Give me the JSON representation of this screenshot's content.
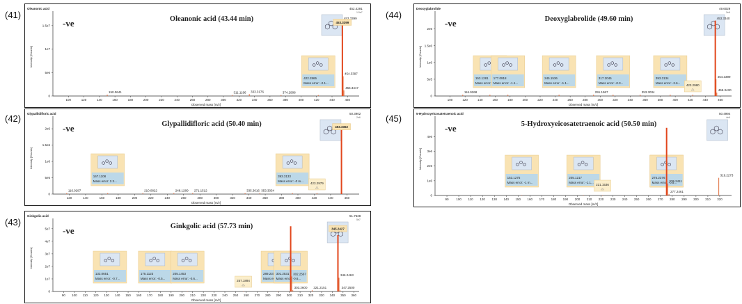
{
  "colors": {
    "peak": "#e06a3a",
    "main_peak": "#e2461c",
    "box_fill": "#f9e3b3",
    "box_fill_light": "#fbeecb",
    "annot_fill": "#bcd8e8",
    "struct_fill": "#dbe6f3",
    "axis": "#333333",
    "text": "#222222"
  },
  "chart_data": [
    {
      "panel": "(41)",
      "type": "bar",
      "window_title": "Oleanonic acid",
      "title": "Oleanonic acid (43.44 min)",
      "mode": "-ve",
      "scale_label": "1.5e7",
      "xlabel": "Observed mass [m/z]",
      "ylabel": "Intensity [Counts]",
      "xlim": [
        80,
        475
      ],
      "ylim": [
        0,
        17500000.0
      ],
      "yticks": [
        {
          "v": 0,
          "l": "0"
        },
        {
          "v": 5000000.0,
          "l": "5e6"
        },
        {
          "v": 10000000.0,
          "l": "1e7"
        },
        {
          "v": 15000000.0,
          "l": "1.5e7"
        }
      ],
      "xticks": [
        100,
        120,
        140,
        160,
        180,
        200,
        220,
        240,
        260,
        280,
        300,
        320,
        340,
        360,
        380,
        400,
        420,
        440,
        460
      ],
      "peaks": [
        {
          "x": 150.0641,
          "y": 300000.0,
          "label": "150.0641"
        },
        {
          "x": 311.1196,
          "y": 200000.0,
          "label": "311.1196"
        },
        {
          "x": 333.3176,
          "y": 400000.0,
          "label": "333.3176"
        },
        {
          "x": 374.2908,
          "y": 200000.0,
          "label": "374.2908"
        },
        {
          "x": 422.2865,
          "y": 200000.0,
          "label": ""
        },
        {
          "x": 453.3399,
          "y": 16000000.0,
          "label": "453.3399",
          "main": true
        },
        {
          "x": 454.3397,
          "y": 4200000.0,
          "label": "454.3397"
        },
        {
          "x": 455.3417,
          "y": 1200000.0,
          "label": "455.3417"
        }
      ],
      "top_label": "452.4291",
      "annotations": [
        {
          "x": 422.2865,
          "mass": "422.2865",
          "error": "Mass error: -2.1..."
        }
      ],
      "main_box": {
        "x": 453.3399,
        "mass": "453.3399"
      },
      "structure_x": 440
    },
    {
      "panel": "(44)",
      "type": "bar",
      "window_title": "Deoxyglabrolide",
      "title": "Deoxyglabrolide (49.60 min)",
      "mode": "-ve",
      "scale_label": "2e6",
      "xlabel": "Observed mass [m/z]",
      "ylabel": "Intensity [Counts]",
      "xlim": [
        80,
        475
      ],
      "ylim": [
        0,
        2450000.0
      ],
      "yticks": [
        {
          "v": 0,
          "l": "0"
        },
        {
          "v": 500000.0,
          "l": "5e5"
        },
        {
          "v": 1000000.0,
          "l": "1e6"
        },
        {
          "v": 1500000.0,
          "l": "1.5e6"
        },
        {
          "v": 2000000.0,
          "l": "2e6"
        }
      ],
      "xticks": [
        100,
        120,
        140,
        160,
        180,
        200,
        220,
        240,
        260,
        280,
        300,
        320,
        340,
        360,
        380,
        400,
        420,
        440,
        460
      ],
      "peaks": [
        {
          "x": 116.9268,
          "y": 40000.0,
          "label": "116.9268"
        },
        {
          "x": 153.1281,
          "y": 40000.0,
          "label": ""
        },
        {
          "x": 177.0918,
          "y": 40000.0,
          "label": ""
        },
        {
          "x": 245.1536,
          "y": 40000.0,
          "label": ""
        },
        {
          "x": 291.1967,
          "y": 40000.0,
          "label": "291.1967"
        },
        {
          "x": 317.2045,
          "y": 40000.0,
          "label": ""
        },
        {
          "x": 353.3034,
          "y": 40000.0,
          "label": "353.3034"
        },
        {
          "x": 393.3134,
          "y": 40000.0,
          "label": ""
        },
        {
          "x": 423.298,
          "y": 40000.0,
          "label": ""
        },
        {
          "x": 453.334,
          "y": 2250000.0,
          "label": "453.3340",
          "main": true
        },
        {
          "x": 454.3399,
          "y": 500000.0,
          "label": "454.3399"
        },
        {
          "x": 455.343,
          "y": 100000.0,
          "label": "455.3430"
        }
      ],
      "top_label": "49.6029",
      "annotations": [
        {
          "x": 153.1281,
          "mass": "153.1281",
          "error": "Mass error: -0.4..."
        },
        {
          "x": 177.0918,
          "mass": "177.0918",
          "error": "Mass error: -1.1..."
        },
        {
          "x": 245.1536,
          "mass": "245.1536",
          "error": "Mass error: -1.1..."
        },
        {
          "x": 317.2045,
          "mass": "317.2045",
          "error": "Mass error: -0.3..."
        },
        {
          "x": 393.3134,
          "mass": "393.3134",
          "error": "Mass error: -2.6..."
        }
      ],
      "small_boxes": [
        {
          "x": 423.298,
          "mass": "423.2980"
        }
      ],
      "structure_x": 452
    },
    {
      "panel": "(42)",
      "type": "bar",
      "window_title": "Glypallidifloric acid",
      "title": "Glypallidifloric acid (50.40 min)",
      "mode": "-ve",
      "scale_label": "2e6",
      "xlabel": "Observed mass [m/z]",
      "ylabel": "Intensity [Counts]",
      "xlim": [
        100,
        475
      ],
      "ylim": [
        0,
        2300000.0
      ],
      "yticks": [
        {
          "v": 0,
          "l": "0"
        },
        {
          "v": 500000.0,
          "l": "5e5"
        },
        {
          "v": 1000000.0,
          "l": "1e6"
        },
        {
          "v": 1500000.0,
          "l": "1.5e6"
        },
        {
          "v": 2000000.0,
          "l": "2e6"
        }
      ],
      "xticks": [
        120,
        140,
        160,
        180,
        200,
        220,
        240,
        260,
        280,
        300,
        320,
        340,
        360,
        380,
        400,
        420,
        440,
        460
      ],
      "peaks": [
        {
          "x": 116.9287,
          "y": 30000.0,
          "label": "116.9287"
        },
        {
          "x": 167.1108,
          "y": 30000.0,
          "label": ""
        },
        {
          "x": 210.0822,
          "y": 30000.0,
          "label": "210.0822"
        },
        {
          "x": 248.1289,
          "y": 30000.0,
          "label": "248.1289"
        },
        {
          "x": 271.1512,
          "y": 30000.0,
          "label": "271.1512"
        },
        {
          "x": 335.3016,
          "y": 30000.0,
          "label": "335.3016"
        },
        {
          "x": 353.3034,
          "y": 30000.0,
          "label": "353.3034"
        },
        {
          "x": 393.3133,
          "y": 30000.0,
          "label": ""
        },
        {
          "x": 423.2979,
          "y": 30000.0,
          "label": ""
        },
        {
          "x": 453.3362,
          "y": 2100000.0,
          "label": "",
          "main": true
        }
      ],
      "top_label": "50.3902",
      "annotations": [
        {
          "x": 167.1108,
          "mass": "167.1108",
          "error": "Mass error: 2.3..."
        },
        {
          "x": 393.3133,
          "mass": "393.3133",
          "error": "Mass error: -0 m..."
        }
      ],
      "small_boxes": [
        {
          "x": 423.2979,
          "mass": "423.2979"
        }
      ],
      "main_box": {
        "x": 453.3362,
        "mass": "453.3362"
      },
      "structure_x": 440
    },
    {
      "panel": "(45)",
      "type": "bar",
      "window_title": "5-Hydroxyeicosatetraenoic acid",
      "title": "5-Hydroxyeicosatetraenoic acid (50.50 min)",
      "mode": "-ve",
      "scale_label": "4e6",
      "xlabel": "Observed mass [m/z]",
      "ylabel": "Intensity [Counts]",
      "xlim": [
        80,
        330
      ],
      "ylim": [
        0,
        5200000.0
      ],
      "yticks": [
        {
          "v": 0,
          "l": "0"
        },
        {
          "v": 1000000.0,
          "l": "1e6"
        },
        {
          "v": 2000000.0,
          "l": "2e6"
        },
        {
          "v": 3000000.0,
          "l": "3e6"
        },
        {
          "v": 4000000.0,
          "l": "4e6"
        }
      ],
      "xticks": [
        90,
        100,
        110,
        120,
        130,
        140,
        150,
        160,
        170,
        180,
        190,
        200,
        210,
        220,
        230,
        240,
        250,
        260,
        270,
        280,
        290,
        300,
        310,
        320
      ],
      "peaks": [
        {
          "x": 153.1275,
          "y": 30000.0,
          "label": ""
        },
        {
          "x": 205.1217,
          "y": 30000.0,
          "label": ""
        },
        {
          "x": 221.1536,
          "y": 30000.0,
          "label": ""
        },
        {
          "x": 275.2017,
          "y": 30000.0,
          "label": ""
        },
        {
          "x": 275.2376,
          "y": 4600000.0,
          "label": "",
          "main": true
        },
        {
          "x": 276.2411,
          "y": 800000.0,
          "label": "276.2411"
        },
        {
          "x": 277.2461,
          "y": 100000.0,
          "label": "277.2461"
        },
        {
          "x": 319.2273,
          "y": 1200000.0,
          "label": "319.2273"
        }
      ],
      "top_label": "50.4994",
      "annotations": [
        {
          "x": 153.1275,
          "mass": "153.1275",
          "error": "Mass error: -1 m..."
        },
        {
          "x": 205.1217,
          "mass": "205.1217",
          "error": "Mass error: -1.1..."
        },
        {
          "x": 275.2017,
          "mass": "275.2017",
          "error": "Mass error: -0.7..."
        },
        {
          "x": 275.2376,
          "mass": "275.2376",
          "error": "Mass error: -0.5..."
        }
      ],
      "small_boxes": [
        {
          "x": 221.1536,
          "mass": "221.1536"
        }
      ],
      "structure_x": 318
    },
    {
      "panel": "(43)",
      "type": "bar",
      "window_title": "Ginkgolic acid",
      "title": "Ginkgolic acid (57.73 min)",
      "mode": "-ve",
      "scale_label": "5e7",
      "xlabel": "Observed mass [m/z]",
      "ylabel": "Intensity [Counts]",
      "xlim": [
        80,
        365
      ],
      "ylim": [
        0,
        56000000.0
      ],
      "yticks": [
        {
          "v": 0,
          "l": "0"
        },
        {
          "v": 10000000.0,
          "l": "1e7"
        },
        {
          "v": 20000000.0,
          "l": "2e7"
        },
        {
          "v": 30000000.0,
          "l": "3e7"
        },
        {
          "v": 40000000.0,
          "l": "4e7"
        },
        {
          "v": 50000000.0,
          "l": "5e7"
        }
      ],
      "xticks": [
        90,
        100,
        110,
        120,
        130,
        140,
        150,
        160,
        170,
        180,
        190,
        200,
        210,
        220,
        230,
        240,
        250,
        260,
        270,
        280,
        290,
        300,
        310,
        320,
        330,
        340,
        350,
        360
      ],
      "peaks": [
        {
          "x": 133.0651,
          "y": 300000.0,
          "label": ""
        },
        {
          "x": 175.1123,
          "y": 300000.0,
          "label": ""
        },
        {
          "x": 205.1453,
          "y": 300000.0,
          "label": ""
        },
        {
          "x": 257.1894,
          "y": 300000.0,
          "label": ""
        },
        {
          "x": 289.2372,
          "y": 300000.0,
          "label": ""
        },
        {
          "x": 301.2531,
          "y": 52000000.0,
          "label": "",
          "main": true
        },
        {
          "x": 302.2567,
          "y": 12000000.0,
          "label": "302.2567"
        },
        {
          "x": 303.26,
          "y": 1000000.0,
          "label": "303.2600"
        },
        {
          "x": 321.2151,
          "y": 1000000.0,
          "label": "321.2151"
        },
        {
          "x": 345.2427,
          "y": 45000000.0,
          "label": "",
          "main": true
        },
        {
          "x": 346.2463,
          "y": 11000000.0,
          "label": "346.2463"
        },
        {
          "x": 347.25,
          "y": 1000000.0,
          "label": "347.2500"
        }
      ],
      "top_label": "51.7528",
      "annotations": [
        {
          "x": 133.0651,
          "mass": "133.0651",
          "error": "Mass error: -0.7..."
        },
        {
          "x": 175.1123,
          "mass": "175.1123",
          "error": "Mass error: -0.5..."
        },
        {
          "x": 205.1453,
          "mass": "205.1453",
          "error": "Mass error: -0.6..."
        },
        {
          "x": 289.2372,
          "mass": "289.2372",
          "error": "Mass error: -0.8..."
        },
        {
          "x": 301.2531,
          "mass": "301.2531",
          "error": "Mass error: -0.6..."
        }
      ],
      "small_boxes": [
        {
          "x": 257.1894,
          "mass": "257.1894"
        }
      ],
      "main_box": {
        "x": 345.2427,
        "mass": "345.2427"
      },
      "structure_x": 345
    }
  ]
}
